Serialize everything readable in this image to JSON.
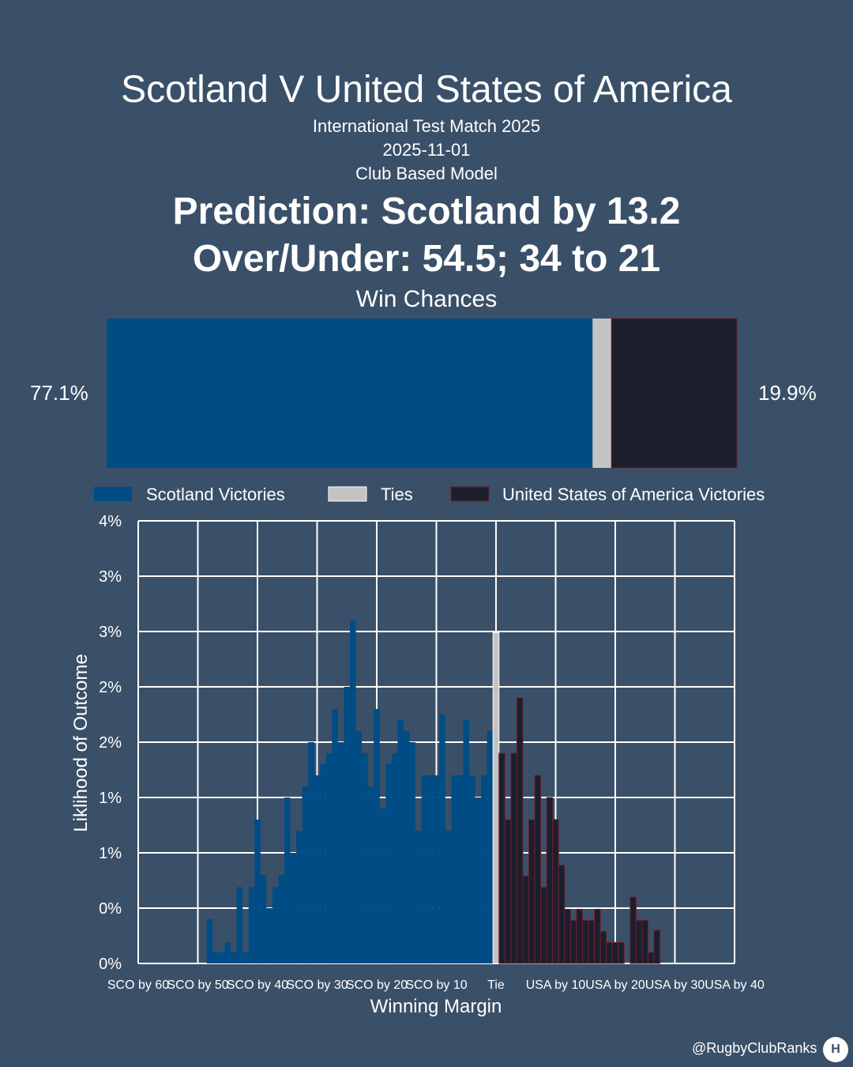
{
  "header": {
    "title": "Scotland V United States of America",
    "subtitle": "International Test Match 2025",
    "date": "2025-11-01",
    "model": "Club Based Model",
    "prediction": "Prediction: Scotland by 13.2",
    "over_under": "Over/Under: 54.5; 34 to 21"
  },
  "win_chances": {
    "title": "Win Chances",
    "left_label": "77.1%",
    "right_label": "19.9%",
    "scotland": 77.1,
    "tie": 3.0,
    "usa": 19.9
  },
  "legend": [
    {
      "label": "Scotland Victories",
      "color": "#004c84"
    },
    {
      "label": "Ties",
      "color": "#c3c3c3"
    },
    {
      "label": "United States of America Victories",
      "color": "#1c1e2c"
    }
  ],
  "colors": {
    "background": "#3a5068",
    "scotland": "#004c84",
    "tie": "#c3c3c3",
    "usa": "#1c1e2c",
    "usa_edge": "#6a2232",
    "grid": "#ffffff"
  },
  "chart_data": {
    "type": "bar",
    "xlabel": "Winning Margin",
    "ylabel": "Liklihood of Outcome",
    "xlim": [
      -60,
      40
    ],
    "ylim": [
      0,
      4
    ],
    "x_ticks": [
      {
        "value": -60,
        "label": "SCO by 60"
      },
      {
        "value": -50,
        "label": "SCO by 50"
      },
      {
        "value": -40,
        "label": "SCO by 40"
      },
      {
        "value": -30,
        "label": "SCO by 30"
      },
      {
        "value": -20,
        "label": "SCO by 20"
      },
      {
        "value": -10,
        "label": "SCO by 10"
      },
      {
        "value": 0,
        "label": "Tie"
      },
      {
        "value": 10,
        "label": "USA by 10"
      },
      {
        "value": 20,
        "label": "USA by 20"
      },
      {
        "value": 30,
        "label": "USA by 30"
      },
      {
        "value": 40,
        "label": "USA by 40"
      }
    ],
    "y_ticks": [
      {
        "value": 0,
        "label": "0%"
      },
      {
        "value": 0.5,
        "label": "0%"
      },
      {
        "value": 1,
        "label": "1%"
      },
      {
        "value": 1.5,
        "label": "1%"
      },
      {
        "value": 2,
        "label": "2%"
      },
      {
        "value": 2.5,
        "label": "2%"
      },
      {
        "value": 3,
        "label": "3%"
      },
      {
        "value": 3.5,
        "label": "3%"
      },
      {
        "value": 4,
        "label": "4%"
      }
    ],
    "series": [
      {
        "name": "Scotland Victories",
        "x": [
          -48,
          -47,
          -46,
          -45,
          -44,
          -43,
          -42,
          -41,
          -40,
          -39,
          -38,
          -37,
          -36,
          -35,
          -34,
          -33,
          -32,
          -31,
          -30,
          -29,
          -28,
          -27,
          -26,
          -25,
          -24,
          -23,
          -22,
          -21,
          -20,
          -19,
          -18,
          -17,
          -16,
          -15,
          -14,
          -13,
          -12,
          -11,
          -10,
          -9,
          -8,
          -7,
          -6,
          -5,
          -4,
          -3,
          -2,
          -1
        ],
        "values": [
          0.4,
          0.1,
          0.1,
          0.19,
          0.1,
          0.69,
          0.1,
          0.69,
          1.3,
          0.8,
          0.5,
          0.69,
          0.8,
          1.5,
          1.0,
          1.2,
          1.6,
          2.0,
          1.7,
          1.8,
          1.9,
          2.3,
          2.0,
          2.5,
          3.1,
          2.1,
          1.9,
          1.6,
          2.3,
          1.4,
          1.8,
          1.9,
          2.2,
          2.1,
          2.0,
          1.2,
          1.7,
          1.7,
          1.7,
          2.25,
          1.2,
          1.7,
          1.7,
          2.2,
          1.7,
          1.5,
          1.7,
          2.1
        ]
      },
      {
        "name": "Ties",
        "x": [
          0
        ],
        "values": [
          2.99
        ]
      },
      {
        "name": "United States of America Victories",
        "x": [
          1,
          2,
          3,
          4,
          5,
          6,
          7,
          8,
          9,
          10,
          11,
          12,
          13,
          14,
          15,
          16,
          17,
          18,
          19,
          20,
          21,
          22,
          23,
          24,
          25,
          26,
          27,
          28
        ],
        "values": [
          1.9,
          1.3,
          1.9,
          2.4,
          0.79,
          1.3,
          1.7,
          0.69,
          1.5,
          1.3,
          0.89,
          0.49,
          0.39,
          0.49,
          0.39,
          0.39,
          0.49,
          0.29,
          0.19,
          0.19,
          0.19,
          0.0,
          0.6,
          0.39,
          0.39,
          0.1,
          0.3,
          0.0
        ]
      }
    ]
  },
  "footer": {
    "credit": "@RugbyClubRanks",
    "logo_glyph": "H"
  }
}
